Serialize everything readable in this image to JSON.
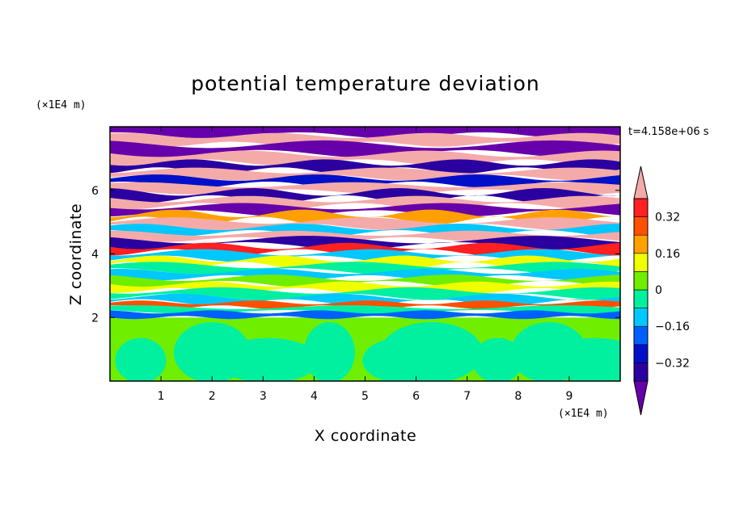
{
  "chart_data": {
    "type": "heatmap",
    "title": "potential temperature deviation",
    "xlabel": "X coordinate",
    "ylabel": "Z coordinate",
    "x_unit": "(×1E4 m)",
    "y_unit": "(×1E4 m)",
    "time_label": "t=4.158e+06 s",
    "xlim": [
      0,
      10
    ],
    "ylim": [
      0,
      8
    ],
    "x_ticks": [
      1,
      2,
      3,
      4,
      5,
      6,
      7,
      8,
      9
    ],
    "y_ticks": [
      2,
      4,
      6
    ],
    "colorbar": {
      "levels": [
        -0.4,
        -0.32,
        -0.24,
        -0.16,
        -0.08,
        0,
        0.08,
        0.16,
        0.24,
        0.32,
        0.4
      ],
      "tick_labels": [
        "0.32",
        "0.16",
        "0",
        "−0.16",
        "−0.32"
      ],
      "tick_values": [
        0.32,
        0.16,
        0,
        -0.16,
        -0.32
      ],
      "colors": [
        "#6600aa",
        "#2a00a0",
        "#0010c8",
        "#0060ff",
        "#00c8ff",
        "#00f0a0",
        "#70ee00",
        "#f0ff00",
        "#ffa000",
        "#ff5000",
        "#ff2020",
        "#f5aaaa"
      ],
      "extend": "both"
    },
    "bands": [
      {
        "z": 7.85,
        "level": 0,
        "amp": 0.1,
        "wave": 1.6
      },
      {
        "z": 7.6,
        "level": 11,
        "amp": 0.08,
        "wave": 2.1
      },
      {
        "z": 7.3,
        "level": 0,
        "amp": 0.12,
        "wave": 1.4
      },
      {
        "z": 7.0,
        "level": 11,
        "amp": 0.1,
        "wave": 1.8
      },
      {
        "z": 6.75,
        "level": 1,
        "amp": 0.1,
        "wave": 2.4
      },
      {
        "z": 6.5,
        "level": 11,
        "amp": 0.09,
        "wave": 1.7
      },
      {
        "z": 6.3,
        "level": 2,
        "amp": 0.1,
        "wave": 2.0
      },
      {
        "z": 6.05,
        "level": 11,
        "amp": 0.08,
        "wave": 1.5
      },
      {
        "z": 5.85,
        "level": 1,
        "amp": 0.12,
        "wave": 2.2
      },
      {
        "z": 5.6,
        "level": 11,
        "amp": 0.1,
        "wave": 1.9
      },
      {
        "z": 5.4,
        "level": 0,
        "amp": 0.1,
        "wave": 1.6
      },
      {
        "z": 5.15,
        "level": 8,
        "amp": 0.12,
        "wave": 2.5
      },
      {
        "z": 4.95,
        "level": 11,
        "amp": 0.1,
        "wave": 1.7
      },
      {
        "z": 4.75,
        "level": 4,
        "amp": 0.1,
        "wave": 2.0
      },
      {
        "z": 4.55,
        "level": 11,
        "amp": 0.08,
        "wave": 1.8
      },
      {
        "z": 4.35,
        "level": 1,
        "amp": 0.12,
        "wave": 1.4
      },
      {
        "z": 4.15,
        "level": 10,
        "amp": 0.1,
        "wave": 2.3
      },
      {
        "z": 3.95,
        "level": 4,
        "amp": 0.1,
        "wave": 1.9
      },
      {
        "z": 3.75,
        "level": 7,
        "amp": 0.1,
        "wave": 2.6
      },
      {
        "z": 3.55,
        "level": 5,
        "amp": 0.1,
        "wave": 1.6
      },
      {
        "z": 3.35,
        "level": 4,
        "amp": 0.08,
        "wave": 2.1
      },
      {
        "z": 3.15,
        "level": 6,
        "amp": 0.1,
        "wave": 1.8
      },
      {
        "z": 2.95,
        "level": 7,
        "amp": 0.08,
        "wave": 2.4
      },
      {
        "z": 2.75,
        "level": 5,
        "amp": 0.1,
        "wave": 1.7
      },
      {
        "z": 2.55,
        "level": 4,
        "amp": 0.1,
        "wave": 2.0
      },
      {
        "z": 2.4,
        "level": 9,
        "amp": 0.06,
        "wave": 2.8
      },
      {
        "z": 2.25,
        "level": 5,
        "amp": 0.06,
        "wave": 1.5
      },
      {
        "z": 2.1,
        "level": 3,
        "amp": 0.05,
        "wave": 3.0
      }
    ],
    "lower_layer": {
      "z_top": 2.0,
      "base_level": 6,
      "patch_level": 5
    }
  }
}
